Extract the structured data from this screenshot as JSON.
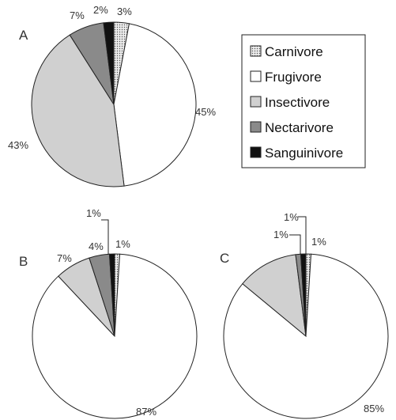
{
  "colors": {
    "Carnivore": "#e8e8e8",
    "Frugivore": "#ffffff",
    "Insectivore": "#d0d0d0",
    "Nectarivore": "#8a8a8a",
    "Sanguinivore": "#111111",
    "carnivore_pattern_dot": "#555555",
    "outline": "#222222"
  },
  "legend": {
    "placement": "top-right",
    "items": [
      "Carnivore",
      "Frugivore",
      "Insectivore",
      "Nectarivore",
      "Sanguinivore"
    ]
  },
  "chart_data": [
    {
      "type": "pie",
      "panel": "A",
      "slices": [
        {
          "name": "Carnivore",
          "value": 3,
          "label": "3%"
        },
        {
          "name": "Frugivore",
          "value": 45,
          "label": "45%"
        },
        {
          "name": "Insectivore",
          "value": 43,
          "label": "43%"
        },
        {
          "name": "Nectarivore",
          "value": 7,
          "label": "7%"
        },
        {
          "name": "Sanguinivore",
          "value": 2,
          "label": "2%"
        }
      ]
    },
    {
      "type": "pie",
      "panel": "B",
      "slices": [
        {
          "name": "Carnivore",
          "value": 1,
          "label": "1%"
        },
        {
          "name": "Frugivore",
          "value": 87,
          "label": "87%"
        },
        {
          "name": "Insectivore",
          "value": 7,
          "label": "7%"
        },
        {
          "name": "Nectarivore",
          "value": 4,
          "label": "4%"
        },
        {
          "name": "Sanguinivore",
          "value": 1,
          "label": "1%"
        }
      ]
    },
    {
      "type": "pie",
      "panel": "C",
      "slices": [
        {
          "name": "Carnivore",
          "value": 1,
          "label": "1%"
        },
        {
          "name": "Frugivore",
          "value": 85,
          "label": "85%"
        },
        {
          "name": "Insectivore",
          "value": 12,
          "label": ""
        },
        {
          "name": "Nectarivore",
          "value": 1,
          "label": "1%"
        },
        {
          "name": "Sanguinivore",
          "value": 1,
          "label": "1%"
        }
      ]
    }
  ]
}
